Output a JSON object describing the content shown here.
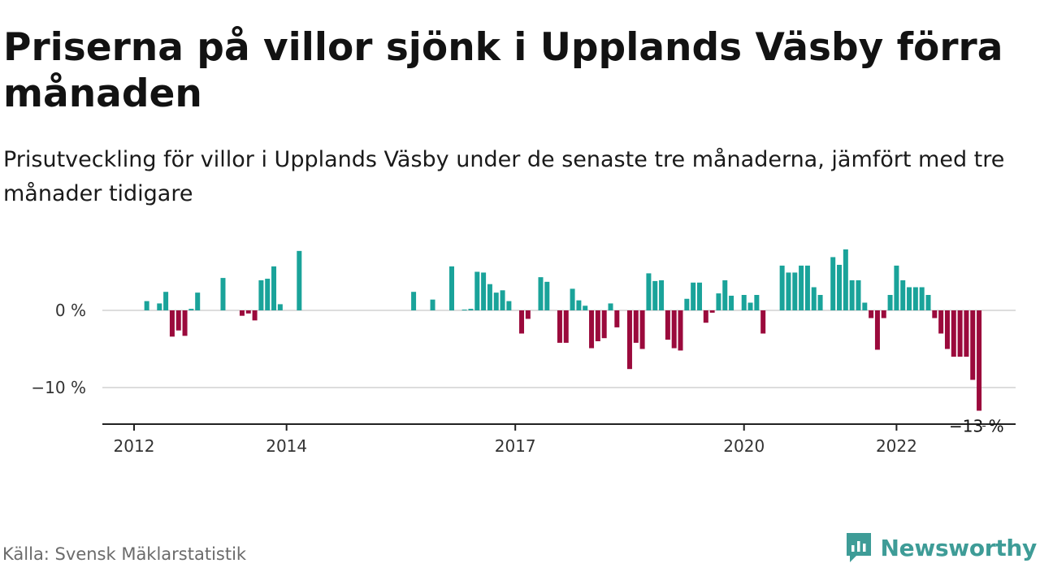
{
  "title": "Priserna på villor sjönk i Upplands Väsby förra månaden",
  "subtitle": "Prisutveckling för villor i Upplands Väsby under de senaste tre månaderna, jämfört med tre månader tidigare",
  "source": "Källa: Svensk Mäklarstatistik",
  "brand": {
    "name": "Newsworthy",
    "color": "#3e9c97",
    "icon": "bar-chart-logo-icon"
  },
  "chart_data": {
    "type": "bar",
    "x_start": "2012-01",
    "x_step": "month",
    "ylim": [
      -15,
      8
    ],
    "y_ticks": [
      {
        "value": 0,
        "label": "0 %"
      },
      {
        "value": -10,
        "label": "−10 %"
      }
    ],
    "x_ticks": [
      {
        "value": "2012-01",
        "label": "2012"
      },
      {
        "value": "2014-01",
        "label": "2014"
      },
      {
        "value": "2017-01",
        "label": "2017"
      },
      {
        "value": "2020-01",
        "label": "2020"
      },
      {
        "value": "2022-01",
        "label": "2022"
      }
    ],
    "colors": {
      "positive": "#1aa39a",
      "negative": "#9b0a3c",
      "grid": "#dddddd",
      "axis": "#222222"
    },
    "last_value_label": "−13 %",
    "values": [
      null,
      null,
      1.2,
      null,
      0.9,
      2.4,
      -3.4,
      -2.6,
      -3.3,
      0.2,
      2.3,
      null,
      null,
      null,
      4.2,
      null,
      null,
      -0.7,
      -0.4,
      -1.3,
      3.9,
      4.1,
      5.7,
      0.8,
      null,
      null,
      7.7,
      null,
      null,
      null,
      null,
      null,
      null,
      null,
      null,
      null,
      null,
      null,
      null,
      null,
      null,
      null,
      null,
      null,
      2.4,
      null,
      null,
      1.4,
      null,
      null,
      5.7,
      null,
      0.1,
      0.2,
      5.0,
      4.9,
      3.4,
      2.3,
      2.6,
      1.2,
      null,
      -3.0,
      -1.1,
      null,
      4.3,
      3.7,
      null,
      -4.2,
      -4.2,
      2.8,
      1.3,
      0.6,
      -4.9,
      -4.0,
      -3.6,
      0.9,
      -2.2,
      null,
      -7.6,
      -4.2,
      -5.0,
      4.8,
      3.8,
      3.9,
      -3.8,
      -4.9,
      -5.2,
      1.5,
      3.6,
      3.6,
      -1.6,
      -0.3,
      2.2,
      3.9,
      1.9,
      null,
      2.0,
      1.0,
      2.0,
      -3.0,
      null,
      null,
      5.8,
      4.9,
      4.9,
      5.8,
      5.8,
      3.0,
      2.0,
      null,
      6.9,
      5.9,
      7.9,
      3.9,
      3.9,
      1.0,
      -1.0,
      -5.1,
      -1.0,
      2.0,
      5.8,
      3.9,
      3.0,
      3.0,
      3.0,
      2.0,
      -1.0,
      -3.0,
      -5.0,
      -6.0,
      -6.0,
      -6.0,
      -9.0,
      -13.0
    ]
  }
}
